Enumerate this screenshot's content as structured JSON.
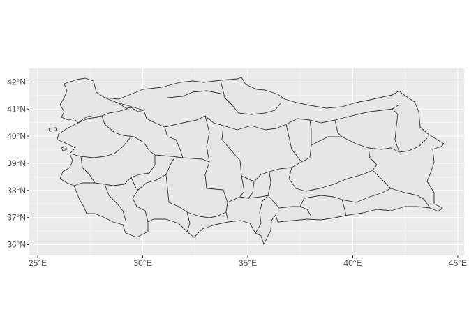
{
  "map": {
    "x_axis": {
      "ticks": [
        {
          "value": 25,
          "label": "25°E"
        },
        {
          "value": 30,
          "label": "30°E"
        },
        {
          "value": 35,
          "label": "35°E"
        },
        {
          "value": 40,
          "label": "40°E"
        },
        {
          "value": 45,
          "label": "45°E"
        }
      ],
      "range": [
        24.6,
        45.3
      ]
    },
    "y_axis": {
      "ticks": [
        {
          "value": 36,
          "label": "36°N"
        },
        {
          "value": 37,
          "label": "37°N"
        },
        {
          "value": 38,
          "label": "38°N"
        },
        {
          "value": 39,
          "label": "39°N"
        },
        {
          "value": 40,
          "label": "40°N"
        },
        {
          "value": 41,
          "label": "41°N"
        },
        {
          "value": 42,
          "label": "42°N"
        }
      ],
      "range": [
        35.6,
        42.5
      ]
    },
    "colors": {
      "panel_background": "#ebebeb",
      "major_grid": "#ffffff",
      "minor_grid": "#f5f5f5",
      "region_fill": "#e6e6e6",
      "region_border": "#333333"
    },
    "grid": true
  }
}
